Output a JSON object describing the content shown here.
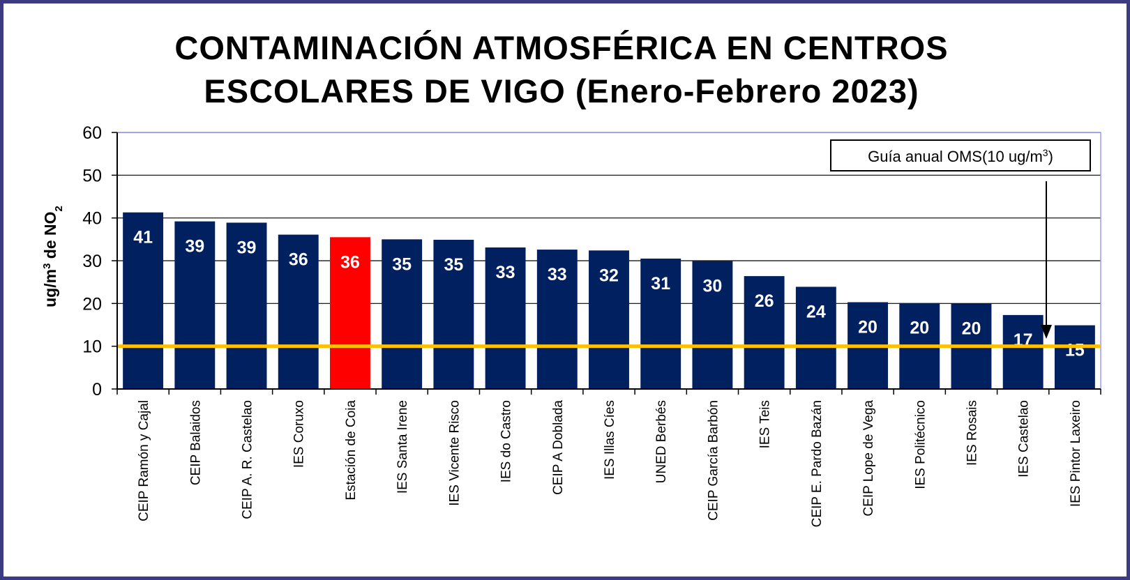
{
  "chart_data": {
    "type": "bar",
    "title": [
      "CONTAMINACIÓN ATMOSFÉRICA EN CENTROS",
      "ESCOLARES DE VIGO (Enero-Febrero 2023)"
    ],
    "ylabel": {
      "main": "ug/m",
      "sup": "3",
      "mid": " de NO",
      "sub": "2"
    },
    "xlabel": "",
    "ylim": [
      0,
      60
    ],
    "yticks": [
      0,
      10,
      20,
      30,
      40,
      50,
      60
    ],
    "grid": true,
    "categories": [
      "CEIP Ramón y Cajal",
      "CEIP Balaidos",
      "CEIP A. R. Castelao",
      "IES Coruxo",
      "Estación de Coia",
      "IES Santa Irene",
      "IES Vicente Risco",
      "IES do Castro",
      "CEIP A Doblada",
      "IES Illas Cíes",
      "UNED Berbés",
      "CEIP García Barbón",
      "IES Teis",
      "CEIP E. Pardo Bazán",
      "CEIP Lope de Vega",
      "IES Politécnico",
      "IES Rosais",
      "IES Castelao",
      "IES Pintor Laxeiro"
    ],
    "values": [
      41.3,
      39.2,
      38.9,
      36.1,
      35.5,
      35.0,
      34.9,
      33.1,
      32.6,
      32.4,
      30.5,
      29.9,
      26.4,
      23.9,
      20.3,
      20.1,
      20.0,
      17.3,
      14.9
    ],
    "data_labels": [
      "41",
      "39",
      "39",
      "36",
      "36",
      "35",
      "35",
      "33",
      "33",
      "32",
      "31",
      "30",
      "26",
      "24",
      "20",
      "20",
      "20",
      "17",
      "15"
    ],
    "highlight_index": 4,
    "colors": {
      "bar": "#002060",
      "highlight": "#ff0000",
      "guideline": "#ffc000",
      "plot_border": "#9999ff",
      "frame": "#3c3a82"
    },
    "guideline": {
      "value": 10,
      "label_main": "Guía anual OMS(10 ug/m",
      "label_sup": "3",
      "label_end": ")"
    }
  }
}
